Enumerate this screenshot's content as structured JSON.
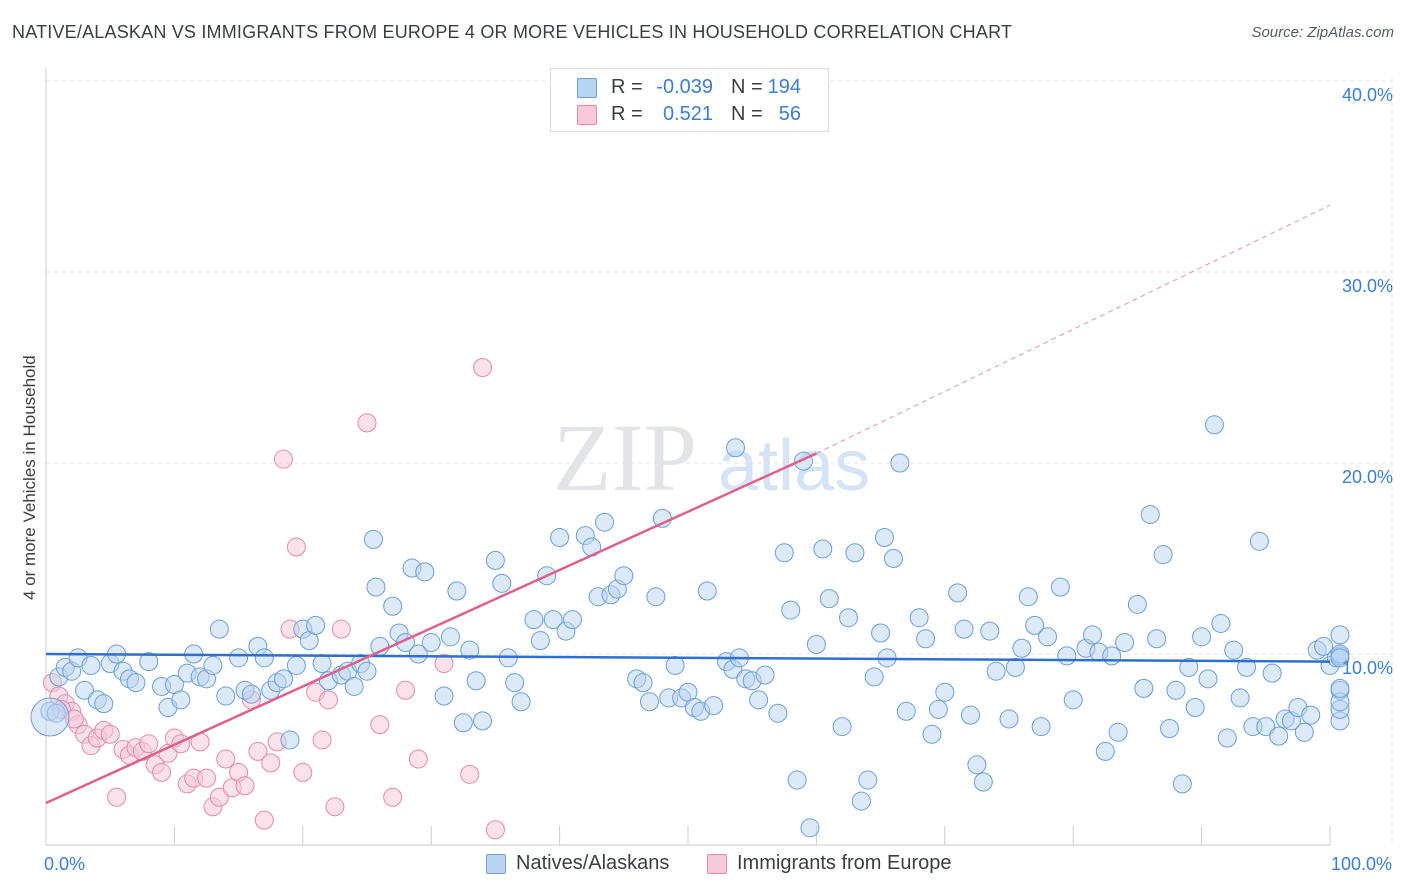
{
  "title": "NATIVE/ALASKAN VS IMMIGRANTS FROM EUROPE 4 OR MORE VEHICLES IN HOUSEHOLD CORRELATION CHART",
  "source": "Source: ZipAtlas.com",
  "watermark": {
    "zip": "ZIP",
    "atlas": "atlas"
  },
  "legend": {
    "rows": [
      {
        "r_label": "R =",
        "r_value": "-0.039",
        "n_label": "N =",
        "n_value": "194",
        "color": "#a9c8f0",
        "border": "#6a9fdd"
      },
      {
        "r_label": "R =",
        "r_value": "0.521",
        "n_label": "N =",
        "n_value": "56",
        "color": "#f8c2d3",
        "border": "#e58aa8"
      }
    ]
  },
  "bottom_legend": [
    "Natives/Alaskans",
    "Immigrants from Europe"
  ],
  "chart_data": {
    "type": "scatter",
    "ylabel": "4 or more Vehicles in Household",
    "xlabel": "",
    "x_tick_labels": [
      "0.0%",
      "100.0%"
    ],
    "y_tick_labels": [
      "10.0%",
      "20.0%",
      "30.0%",
      "40.0%"
    ],
    "xlim": [
      0,
      100
    ],
    "ylim": [
      0,
      41.4
    ],
    "grid": true,
    "legend_placement": "top-center",
    "colors": {
      "natives": "#6a9fdd",
      "natives_fill": "#b9d3f3",
      "immigrants": "#e58aa8",
      "immigrants_fill": "#f8c9d8",
      "blue_line": "#2e6fd0",
      "pink_line": "#e0608c"
    },
    "series": [
      {
        "name": "Natives/Alaskans",
        "trend": {
          "x": [
            0,
            100
          ],
          "y": [
            10.0,
            9.6
          ]
        },
        "points": [
          [
            0.3,
            7.0
          ],
          [
            1.0,
            8.8
          ],
          [
            1.5,
            9.3
          ],
          [
            2.0,
            9.1
          ],
          [
            2.5,
            9.8
          ],
          [
            3.0,
            8.1
          ],
          [
            3.5,
            9.4
          ],
          [
            4.0,
            7.6
          ],
          [
            4.5,
            7.4
          ],
          [
            5.0,
            9.5
          ],
          [
            5.5,
            10.0
          ],
          [
            6.0,
            9.1
          ],
          [
            6.5,
            8.7
          ],
          [
            7.0,
            8.5
          ],
          [
            8.0,
            9.6
          ],
          [
            9.0,
            8.3
          ],
          [
            9.5,
            7.2
          ],
          [
            10.0,
            8.4
          ],
          [
            10.5,
            7.6
          ],
          [
            11.0,
            9.0
          ],
          [
            11.5,
            10.0
          ],
          [
            12.0,
            8.8
          ],
          [
            12.5,
            8.7
          ],
          [
            13.0,
            9.4
          ],
          [
            13.5,
            11.3
          ],
          [
            14.0,
            7.8
          ],
          [
            15.0,
            9.8
          ],
          [
            15.5,
            8.1
          ],
          [
            16.0,
            7.9
          ],
          [
            16.5,
            10.4
          ],
          [
            17.0,
            9.8
          ],
          [
            17.5,
            8.1
          ],
          [
            18.0,
            8.5
          ],
          [
            18.5,
            8.7
          ],
          [
            19.0,
            5.5
          ],
          [
            19.5,
            9.4
          ],
          [
            20.0,
            11.3
          ],
          [
            20.5,
            10.7
          ],
          [
            21.0,
            11.5
          ],
          [
            21.5,
            9.5
          ],
          [
            22.0,
            8.6
          ],
          [
            23.0,
            8.9
          ],
          [
            23.5,
            9.1
          ],
          [
            24.0,
            8.3
          ],
          [
            24.5,
            9.5
          ],
          [
            25.0,
            9.1
          ],
          [
            25.5,
            16.0
          ],
          [
            25.7,
            13.5
          ],
          [
            26.0,
            10.4
          ],
          [
            27.0,
            12.5
          ],
          [
            27.5,
            11.1
          ],
          [
            28.0,
            10.6
          ],
          [
            28.5,
            14.5
          ],
          [
            29.0,
            10.0
          ],
          [
            29.5,
            14.3
          ],
          [
            30.0,
            10.6
          ],
          [
            31.0,
            7.8
          ],
          [
            31.5,
            10.9
          ],
          [
            32.0,
            13.3
          ],
          [
            32.5,
            6.4
          ],
          [
            33.0,
            10.2
          ],
          [
            33.5,
            8.6
          ],
          [
            34.0,
            6.5
          ],
          [
            35.0,
            14.9
          ],
          [
            35.5,
            13.7
          ],
          [
            36.0,
            9.8
          ],
          [
            36.5,
            8.5
          ],
          [
            37.0,
            7.5
          ],
          [
            38.0,
            11.8
          ],
          [
            38.5,
            10.7
          ],
          [
            39.0,
            14.1
          ],
          [
            39.5,
            11.8
          ],
          [
            40.0,
            16.1
          ],
          [
            40.5,
            11.2
          ],
          [
            41.0,
            11.8
          ],
          [
            42.0,
            16.2
          ],
          [
            42.5,
            15.6
          ],
          [
            43.0,
            13.0
          ],
          [
            43.5,
            16.9
          ],
          [
            44.0,
            13.1
          ],
          [
            44.5,
            13.4
          ],
          [
            45.0,
            14.1
          ],
          [
            46.0,
            8.7
          ],
          [
            46.5,
            8.5
          ],
          [
            47.0,
            7.5
          ],
          [
            47.5,
            13.0
          ],
          [
            48.0,
            17.1
          ],
          [
            48.5,
            7.7
          ],
          [
            49.0,
            9.4
          ],
          [
            49.5,
            7.7
          ],
          [
            50.0,
            8.0
          ],
          [
            50.5,
            7.2
          ],
          [
            51.0,
            7.0
          ],
          [
            51.5,
            13.3
          ],
          [
            52.0,
            7.3
          ],
          [
            53.0,
            9.6
          ],
          [
            53.5,
            9.2
          ],
          [
            53.7,
            20.8
          ],
          [
            54.0,
            9.8
          ],
          [
            54.5,
            8.7
          ],
          [
            55.0,
            8.6
          ],
          [
            55.5,
            7.6
          ],
          [
            56.0,
            8.9
          ],
          [
            57.0,
            6.9
          ],
          [
            57.5,
            15.3
          ],
          [
            58.0,
            12.3
          ],
          [
            58.5,
            3.4
          ],
          [
            59.0,
            20.1
          ],
          [
            59.5,
            0.9
          ],
          [
            60.0,
            10.5
          ],
          [
            60.5,
            15.5
          ],
          [
            61.0,
            12.9
          ],
          [
            62.0,
            6.2
          ],
          [
            62.5,
            11.9
          ],
          [
            63.0,
            15.3
          ],
          [
            63.5,
            2.3
          ],
          [
            64.0,
            3.4
          ],
          [
            64.5,
            8.8
          ],
          [
            65.0,
            11.1
          ],
          [
            65.3,
            16.1
          ],
          [
            65.5,
            9.8
          ],
          [
            66.0,
            15.0
          ],
          [
            66.5,
            20.0
          ],
          [
            67.0,
            7.0
          ],
          [
            68.0,
            11.9
          ],
          [
            68.5,
            10.8
          ],
          [
            69.0,
            5.8
          ],
          [
            69.5,
            7.1
          ],
          [
            70.0,
            8.0
          ],
          [
            71.0,
            13.2
          ],
          [
            71.5,
            11.3
          ],
          [
            72.0,
            6.8
          ],
          [
            72.5,
            4.2
          ],
          [
            73.0,
            3.3
          ],
          [
            73.5,
            11.2
          ],
          [
            74.0,
            9.1
          ],
          [
            75.0,
            6.6
          ],
          [
            75.5,
            9.3
          ],
          [
            76.0,
            10.3
          ],
          [
            76.5,
            13.0
          ],
          [
            77.0,
            11.5
          ],
          [
            77.5,
            6.2
          ],
          [
            78.0,
            10.9
          ],
          [
            79.0,
            13.5
          ],
          [
            79.5,
            9.9
          ],
          [
            80.0,
            7.6
          ],
          [
            81.0,
            10.3
          ],
          [
            81.5,
            11.0
          ],
          [
            82.0,
            10.1
          ],
          [
            82.5,
            4.9
          ],
          [
            83.0,
            9.9
          ],
          [
            83.5,
            5.9
          ],
          [
            84.0,
            10.6
          ],
          [
            85.0,
            12.6
          ],
          [
            85.5,
            8.2
          ],
          [
            86.0,
            17.3
          ],
          [
            86.5,
            10.8
          ],
          [
            87.0,
            15.2
          ],
          [
            87.5,
            6.1
          ],
          [
            88.0,
            8.1
          ],
          [
            88.5,
            3.2
          ],
          [
            89.0,
            9.3
          ],
          [
            89.5,
            7.2
          ],
          [
            90.0,
            10.9
          ],
          [
            90.5,
            8.7
          ],
          [
            91.0,
            22.0
          ],
          [
            91.5,
            11.6
          ],
          [
            92.0,
            5.6
          ],
          [
            92.5,
            10.2
          ],
          [
            93.0,
            7.7
          ],
          [
            93.5,
            9.3
          ],
          [
            94.0,
            6.2
          ],
          [
            94.5,
            15.9
          ],
          [
            95.0,
            6.2
          ],
          [
            95.5,
            9.0
          ],
          [
            96.0,
            5.7
          ],
          [
            96.5,
            6.6
          ],
          [
            97.0,
            6.5
          ],
          [
            97.5,
            7.2
          ],
          [
            98.0,
            5.9
          ],
          [
            98.5,
            6.8
          ],
          [
            99.0,
            10.2
          ],
          [
            99.5,
            10.4
          ],
          [
            100.0,
            9.4
          ],
          [
            100.5,
            9.8
          ],
          [
            101.0,
            6.5
          ],
          [
            101.5,
            9.9
          ],
          [
            102.0,
            11.0
          ],
          [
            102.5,
            7.1
          ],
          [
            103.0,
            8.1
          ],
          [
            103.5,
            7.5
          ],
          [
            104.0,
            8.2
          ],
          [
            104.5,
            10.0
          ],
          [
            105.0,
            9.8
          ],
          [
            0.8,
            6.9
          ]
        ]
      },
      {
        "name": "Immigrants from Europe",
        "trend": {
          "x": [
            0,
            60
          ],
          "y": [
            2.2,
            20.5
          ],
          "dashed_to": {
            "x": 100,
            "y": 33.5
          }
        },
        "points": [
          [
            0.5,
            8.5
          ],
          [
            1.0,
            7.8
          ],
          [
            1.5,
            7.4
          ],
          [
            2.0,
            7.0
          ],
          [
            2.5,
            6.3
          ],
          [
            3.0,
            5.8
          ],
          [
            3.5,
            5.2
          ],
          [
            4.0,
            5.6
          ],
          [
            4.5,
            6.0
          ],
          [
            5.0,
            5.8
          ],
          [
            5.5,
            2.5
          ],
          [
            6.0,
            5.0
          ],
          [
            6.5,
            4.7
          ],
          [
            7.0,
            5.1
          ],
          [
            7.5,
            4.9
          ],
          [
            8.0,
            5.3
          ],
          [
            8.5,
            4.2
          ],
          [
            9.0,
            3.8
          ],
          [
            9.5,
            4.8
          ],
          [
            10.0,
            5.6
          ],
          [
            10.5,
            5.3
          ],
          [
            11.0,
            3.2
          ],
          [
            11.5,
            3.5
          ],
          [
            12.0,
            5.4
          ],
          [
            12.5,
            3.5
          ],
          [
            13.0,
            2.0
          ],
          [
            13.5,
            2.5
          ],
          [
            14.0,
            4.5
          ],
          [
            14.5,
            3.0
          ],
          [
            15.0,
            3.8
          ],
          [
            15.5,
            3.1
          ],
          [
            16.0,
            7.6
          ],
          [
            16.5,
            4.9
          ],
          [
            17.0,
            1.3
          ],
          [
            17.5,
            4.3
          ],
          [
            18.0,
            5.4
          ],
          [
            18.5,
            20.2
          ],
          [
            19.0,
            11.3
          ],
          [
            19.5,
            15.6
          ],
          [
            20.0,
            3.8
          ],
          [
            21.0,
            8.0
          ],
          [
            21.5,
            5.5
          ],
          [
            22.0,
            7.6
          ],
          [
            22.5,
            2.0
          ],
          [
            23.0,
            11.3
          ],
          [
            25.0,
            22.1
          ],
          [
            26.0,
            6.3
          ],
          [
            27.0,
            2.5
          ],
          [
            28.0,
            8.1
          ],
          [
            29.0,
            4.5
          ],
          [
            31.0,
            9.5
          ],
          [
            33.0,
            3.7
          ],
          [
            34.0,
            25.0
          ],
          [
            35.0,
            0.8
          ],
          [
            1.2,
            7.1
          ],
          [
            2.2,
            6.6
          ]
        ]
      }
    ]
  }
}
